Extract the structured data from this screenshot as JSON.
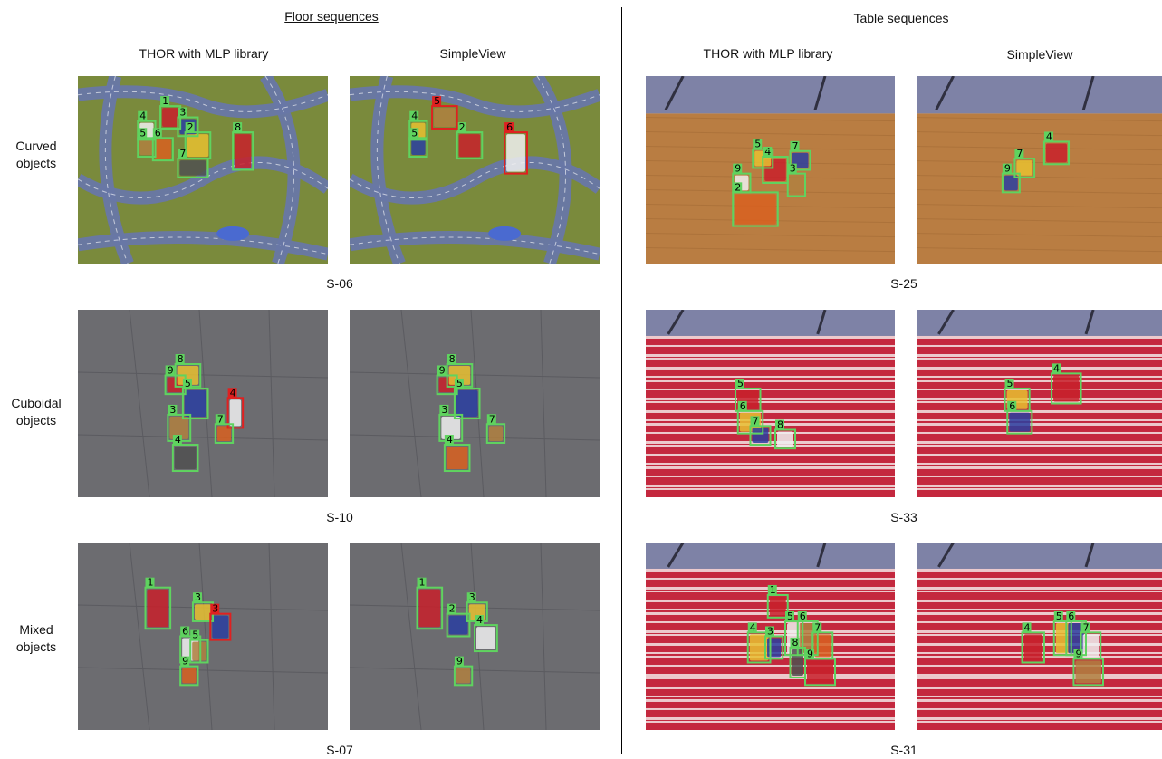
{
  "sections": {
    "floor_title": "Floor sequences",
    "table_title": "Table sequences"
  },
  "columns": {
    "floor_left": "THOR with MLP library",
    "floor_right": "SimpleView",
    "table_left": "THOR with MLP library",
    "table_right": "SimpleView"
  },
  "rows": [
    {
      "label_line1": "Curved",
      "label_line2": "objects",
      "floor_seq": "S-06",
      "table_seq": "S-25"
    },
    {
      "label_line1": "Cuboidal",
      "label_line2": "objects",
      "floor_seq": "S-10",
      "table_seq": "S-33"
    },
    {
      "label_line1": "Mixed",
      "label_line2": "objects",
      "floor_seq": "S-07",
      "table_seq": "S-31"
    }
  ],
  "colors": {
    "correct_box": "#5fd35f",
    "incorrect_box": "#e02020",
    "floor_mat": "#7a8a3c",
    "floor_tile": "#6c6c70",
    "table_wood": "#b97d42",
    "table_stripe_red": "#c4283e",
    "table_stripe_white": "#f3e6e6",
    "wall": "#7e82a6"
  },
  "panels": {
    "p_1_1_l": [
      {
        "n": "1",
        "c": "g"
      },
      {
        "n": "2",
        "c": "g"
      },
      {
        "n": "3",
        "c": "g"
      },
      {
        "n": "4",
        "c": "g"
      },
      {
        "n": "5",
        "c": "g"
      },
      {
        "n": "6",
        "c": "g"
      },
      {
        "n": "7",
        "c": "g"
      },
      {
        "n": "8",
        "c": "g"
      }
    ],
    "p_1_1_r": [
      {
        "n": "2",
        "c": "g"
      },
      {
        "n": "4",
        "c": "g"
      },
      {
        "n": "5",
        "c": "g"
      },
      {
        "n": "6",
        "c": "r"
      },
      {
        "n": "5",
        "c": "r"
      }
    ],
    "p_1_2_l": [
      {
        "n": "4",
        "c": "g"
      },
      {
        "n": "5",
        "c": "g"
      },
      {
        "n": "7",
        "c": "g"
      },
      {
        "n": "9",
        "c": "g"
      },
      {
        "n": "3",
        "c": "g"
      },
      {
        "n": "2",
        "c": "g"
      }
    ],
    "p_1_2_r": [
      {
        "n": "4",
        "c": "g"
      },
      {
        "n": "7",
        "c": "g"
      },
      {
        "n": "9",
        "c": "g"
      }
    ],
    "p_2_1_l": [
      {
        "n": "9",
        "c": "g"
      },
      {
        "n": "8",
        "c": "g"
      },
      {
        "n": "5",
        "c": "g"
      },
      {
        "n": "4",
        "c": "r"
      },
      {
        "n": "3",
        "c": "g"
      },
      {
        "n": "7",
        "c": "g"
      },
      {
        "n": "4",
        "c": "g"
      }
    ],
    "p_2_1_r": [
      {
        "n": "9",
        "c": "g"
      },
      {
        "n": "8",
        "c": "g"
      },
      {
        "n": "5",
        "c": "g"
      },
      {
        "n": "3",
        "c": "g"
      },
      {
        "n": "7",
        "c": "g"
      },
      {
        "n": "4",
        "c": "g"
      }
    ],
    "p_2_2_l": [
      {
        "n": "5",
        "c": "g"
      },
      {
        "n": "6",
        "c": "g"
      },
      {
        "n": "7",
        "c": "g"
      },
      {
        "n": "8",
        "c": "g"
      }
    ],
    "p_2_2_r": [
      {
        "n": "4",
        "c": "g"
      },
      {
        "n": "5",
        "c": "g"
      },
      {
        "n": "6",
        "c": "g"
      }
    ],
    "p_3_1_l": [
      {
        "n": "1",
        "c": "g"
      },
      {
        "n": "3",
        "c": "g"
      },
      {
        "n": "3",
        "c": "r"
      },
      {
        "n": "6",
        "c": "g"
      },
      {
        "n": "5",
        "c": "g"
      },
      {
        "n": "9",
        "c": "g"
      }
    ],
    "p_3_1_r": [
      {
        "n": "1",
        "c": "g"
      },
      {
        "n": "3",
        "c": "g"
      },
      {
        "n": "2",
        "c": "g"
      },
      {
        "n": "4",
        "c": "g"
      },
      {
        "n": "9",
        "c": "g"
      }
    ],
    "p_3_2_l": [
      {
        "n": "1",
        "c": "g"
      },
      {
        "n": "4",
        "c": "g"
      },
      {
        "n": "3",
        "c": "g"
      },
      {
        "n": "5",
        "c": "g"
      },
      {
        "n": "6",
        "c": "g"
      },
      {
        "n": "7",
        "c": "g"
      },
      {
        "n": "8",
        "c": "g"
      },
      {
        "n": "9",
        "c": "g"
      }
    ],
    "p_3_2_r": [
      {
        "n": "4",
        "c": "g"
      },
      {
        "n": "5",
        "c": "g"
      },
      {
        "n": "6",
        "c": "g"
      },
      {
        "n": "7",
        "c": "g"
      },
      {
        "n": "9",
        "c": "g"
      }
    ]
  }
}
